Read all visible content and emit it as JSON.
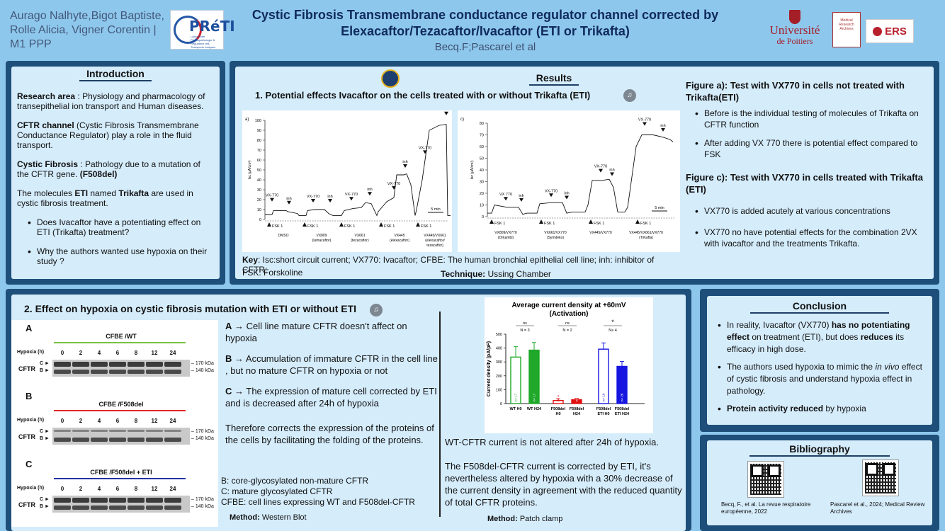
{
  "header": {
    "authors": "Aurago Nalhyte,Bigot Baptiste, Rolle Alicia, Vigner Corentin | M1 PPP",
    "title": "Cystic Fibrosis Transmembrane conductance regulator channel corrected by Elexacaftor/Tezacaftor/Ivacaftor (ETI or Trikafta)",
    "subtitle": "Becq.F;Pascarel et al",
    "logo_preti_text": "PRéTI",
    "logo_preti_sub": "Laboratoire Physiopathologie & Régulation des Transports Ioniques",
    "logo_univ_line1": "Université",
    "logo_univ_line2": "de Poitiers",
    "logo_mra": "Medical Research Archives",
    "logo_ers": "ERS"
  },
  "intro": {
    "title": "Introduction",
    "p1_bold": "Research area",
    "p1_text": " : Physiology and pharmacology of transepithelial ion transport and Human diseases.",
    "p2_bold": "CFTR channel",
    "p2_text": " (Cystic Fibrosis Transmembrane Conductance Regulator) play a role in the fluid transport.",
    "p3_bold": "Cystic Fibrosis",
    "p3_text": " : Pathology due to a mutation of the CFTR gene. ",
    "p3_bold2": "(F508del)",
    "p4_a": "The molecules ",
    "p4_b": "ETI",
    "p4_c": " named ",
    "p4_d": "Trikafta",
    "p4_e": " are used in cystic fibrosis treatment.",
    "q1": "Does Ivacaftor have a potentiating effect on ETI (Trikafta) treatment?",
    "q2": "Why the authors wanted use hypoxia on their study ?"
  },
  "results": {
    "title": "Results",
    "section1": "1. Potential effects Ivacaftor on the cells treated with or without Trikafta (ETI)",
    "key_bold": "Key",
    "key_text": ": Isc:short circuit current; VX770: Ivacaftor; CFBE: The human bronchial epithelial cell line; inh: inhibitor of CFTR;",
    "key_text2": "FSK: Forskoline",
    "technique_bold": "Technique:",
    "technique_text": " Ussing Chamber",
    "figA_title": "Figure a): Test with VX770 in cells not treated with Trikafta(ETI)",
    "figA_b1": "Before is the individual testing of molecules of Trikafta on CFTR function",
    "figA_b2": "After adding VX 770 there is potential effect compared to FSK",
    "figC_title": "Figure c): Test with VX770 in cells treated with Trikafta (ETI)",
    "figC_b1": "VX770 is added acutely at various concentrations",
    "figC_b2": "VX770 no have potential effects for the combination 2VX with ivacaftor and the treatments Trikafta."
  },
  "chart_a": {
    "panel_label": "a)",
    "ylabel": "Isc (µA/cm²)",
    "yticks": [
      "0",
      "10",
      "20",
      "30",
      "40",
      "50",
      "60",
      "70",
      "80",
      "90",
      "100"
    ],
    "groups": [
      "DMSO",
      "VX809\n(lumacaftor)",
      "VX661\n(tezacaftor)",
      "VX445\n(elexacaftor)",
      "VX445/VX661\n(elexacaftor/\ntezacaftor)"
    ],
    "fsk_label": "FSK 1",
    "vx_label": "VX-770",
    "inh_label": "inh",
    "scale": "5 min"
  },
  "chart_c": {
    "panel_label": "c)",
    "ylabel": "Isc (µA/cm²)",
    "yticks": [
      "0",
      "10",
      "20",
      "30",
      "40",
      "50",
      "60",
      "70",
      "80"
    ],
    "groups": [
      "VX809/VX770\n(Orkambi)",
      "VX661/VX770\n(Symdeko)",
      "VX445/VX770",
      "VX445/VX661/VX770\n(Trikafta)"
    ],
    "fsk_label": "FSK 1",
    "vx_label": "VX-770",
    "vx_label2": "VX 770",
    "inh_label": "inh",
    "scale": "5 min"
  },
  "hypoxia": {
    "title": "2. Effect on hypoxia on cystic fibrosis mutation with ETI or without ETI",
    "blots": [
      {
        "label": "A",
        "head": "CFBE /WT",
        "color": "#7bc043"
      },
      {
        "label": "B",
        "head": "CFBE /F508del",
        "color": "#e0262b"
      },
      {
        "label": "C",
        "head": "CFBE /F508del + ETI",
        "color": "#2432a8"
      }
    ],
    "hypoxia_label": "Hypoxia (h)",
    "lanes": [
      "0",
      "2",
      "4",
      "6",
      "8",
      "12",
      "24"
    ],
    "cftr_label": "CFTR",
    "band_c": "C ►",
    "band_b": "B ►",
    "kda170": "– 170 kDa",
    "kda140": "– 140 kDa",
    "textA_bold": "A",
    "textA": " → Cell line mature CFTR doesn't affect on hypoxia",
    "textB_bold": "B",
    "textB": " → Accumulation of immature CFTR in the cell line , but no mature CFTR  on hypoxia or not",
    "textC_bold": "C",
    "textC": " → The expression of mature cell corrected by ETI and  is decreased after 24h of hypoxia",
    "therefore": "Therefore corrects the expression of the proteins of the cells by facilitating the folding of the proteins.",
    "legend1": "B: core-glycosylated non-mature CFTR",
    "legend2": "C: mature glycosylated CFTR",
    "legend3": "CFBE: cell lines expressing WT and F508del-CFTR",
    "method_bold": "Method:",
    "method_text": " Western Blot",
    "patch_text1": "WT-CFTR current is not altered after 24h of hypoxia.",
    "patch_text2": "The F508del-CFTR current is corrected by ETI, it's nevertheless altered by hypoxia with a 30% decrease of the current density in agreement with the reduced quantity of total CFTR proteins.",
    "method2_bold": "Method:",
    "method2_text": " Patch clamp"
  },
  "chart_data": {
    "type": "bar",
    "title": "Average current density at +60mV (Activation)",
    "ylabel": "Current density (pA/pF)",
    "ylim": [
      0,
      500
    ],
    "yticks": [
      "0",
      "100",
      "200",
      "300",
      "400",
      "500"
    ],
    "categories": [
      "WT H0",
      "WT H24",
      "F508del H0",
      "F508del H24",
      "F508del ETI H0",
      "F508del ETI H24"
    ],
    "category_lines": [
      [
        "WT H0"
      ],
      [
        "WT H24"
      ],
      [
        "F508del",
        "H0"
      ],
      [
        "F508del",
        "H24"
      ],
      [
        "F508del",
        "ETI H0"
      ],
      [
        "F508del",
        "ETI H24"
      ]
    ],
    "values": [
      335,
      385,
      22,
      28,
      392,
      268
    ],
    "errors": [
      75,
      55,
      12,
      10,
      45,
      35
    ],
    "n_labels": [
      "n= 17",
      "n= 17",
      "n= 4",
      "n= 4",
      "n= 10",
      "n= 28"
    ],
    "colors": [
      "#1fa829",
      "#1fa829",
      "#e01010",
      "#e01010",
      "#1616e0",
      "#1616e0"
    ],
    "filled": [
      false,
      true,
      false,
      true,
      false,
      true
    ],
    "groups": [
      {
        "sig": "ns",
        "n": "N = 3"
      },
      {
        "sig": "ns",
        "n": "N = 2"
      },
      {
        "sig": "*",
        "n": "N≥ 4"
      }
    ]
  },
  "conclusion": {
    "title": "Conclusion",
    "b1_a": "In reality, Ivacaftor (VX770) ",
    "b1_b": "has no potentiating effect",
    "b1_c": " on treatment (ETI), but does ",
    "b1_d": "reduces",
    "b1_e": " its efficacy in high dose.",
    "b2_a": "The authors used hypoxia to mimic the ",
    "b2_b": "in vivo",
    "b2_c": " effect of cystic fibrosis and understand hypoxia effect in pathology.",
    "b3_a": "Protein activity reduced",
    "b3_b": " by hypoxia"
  },
  "bibliography": {
    "title": "Bibliography",
    "ref1": "Becq, F., et al. La revue respiratoire européenne, 2022",
    "ref2": "Pascarel et al., 2024; Medical Review Archives"
  }
}
